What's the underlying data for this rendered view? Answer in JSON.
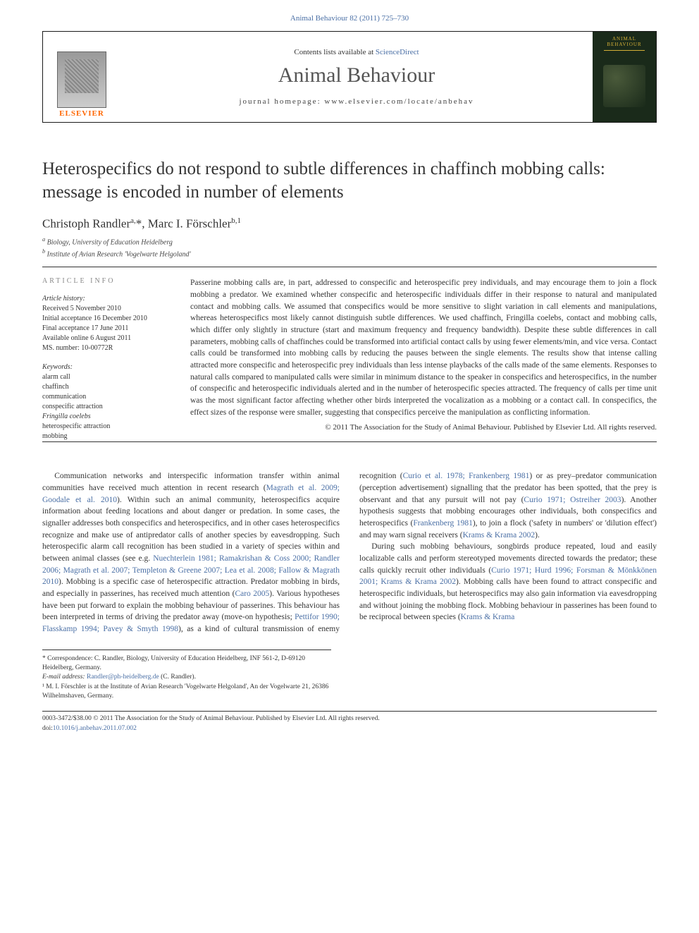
{
  "header": {
    "citation": "Animal Behaviour 82 (2011) 725–730",
    "contents_text": "Contents lists available at ",
    "contents_link": "ScienceDirect",
    "journal_name": "Animal Behaviour",
    "homepage_label": "journal homepage: ",
    "homepage_url": "www.elsevier.com/locate/anbehav",
    "elsevier_label": "ELSEVIER",
    "cover_title": "ANIMAL BEHAVIOUR"
  },
  "article": {
    "title": "Heterospecifics do not respond to subtle differences in chaffinch mobbing calls: message is encoded in number of elements",
    "authors_html": "Christoph Randler <sup>a,</sup>*, Marc I. Förschler <sup>b,1</sup>",
    "affiliations": {
      "a": "Biology, University of Education Heidelberg",
      "b": "Institute of Avian Research 'Vogelwarte Helgoland'"
    }
  },
  "info": {
    "header": "ARTICLE INFO",
    "history_label": "Article history:",
    "history": [
      "Received 5 November 2010",
      "Initial acceptance 16 December 2010",
      "Final acceptance 17 June 2011",
      "Available online 6 August 2011",
      "MS. number: 10-00772R"
    ],
    "keywords_label": "Keywords:",
    "keywords": [
      "alarm call",
      "chaffinch",
      "communication",
      "conspecific attraction",
      "Fringilla coelebs",
      "heterospecific attraction",
      "mobbing"
    ]
  },
  "abstract": {
    "text": "Passerine mobbing calls are, in part, addressed to conspecific and heterospecific prey individuals, and may encourage them to join a flock mobbing a predator. We examined whether conspecific and heterospecific individuals differ in their response to natural and manipulated contact and mobbing calls. We assumed that conspecifics would be more sensitive to slight variation in call elements and manipulations, whereas heterospecifics most likely cannot distinguish subtle differences. We used chaffinch, Fringilla coelebs, contact and mobbing calls, which differ only slightly in structure (start and maximum frequency and frequency bandwidth). Despite these subtle differences in call parameters, mobbing calls of chaffinches could be transformed into artificial contact calls by using fewer elements/min, and vice versa. Contact calls could be transformed into mobbing calls by reducing the pauses between the single elements. The results show that intense calling attracted more conspecific and heterospecific prey individuals than less intense playbacks of the calls made of the same elements. Responses to natural calls compared to manipulated calls were similar in minimum distance to the speaker in conspecifics and heterospecifics, in the number of conspecific and heterospecific individuals alerted and in the number of heterospecific species attracted. The frequency of calls per time unit was the most significant factor affecting whether other birds interpreted the vocalization as a mobbing or a contact call. In conspecifics, the effect sizes of the response were smaller, suggesting that conspecifics perceive the manipulation as conflicting information.",
    "copyright": "© 2011 The Association for the Study of Animal Behaviour. Published by Elsevier Ltd. All rights reserved."
  },
  "body": {
    "para1_a": "Communication networks and interspecific information transfer within animal communities have received much attention in recent research (",
    "para1_link1": "Magrath et al. 2009; Goodale et al. 2010",
    "para1_b": "). Within such an animal community, heterospecifics acquire information about feeding locations and about danger or predation. In some cases, the signaller addresses both conspecifics and heterospecifics, and in other cases heterospecifics recognize and make use of antipredator calls of another species by eavesdropping. Such heterospecific alarm call recognition has been studied in a variety of species within and between animal classes (see e.g. ",
    "para1_link2": "Nuechterlein 1981; Ramakrishan & Coss 2000; Randler 2006; Magrath et al. 2007; Templeton & Greene 2007; Lea et al. 2008; Fallow & Magrath 2010",
    "para1_c": "). Mobbing is a specific case of heterospecific attraction. Predator mobbing in birds, and especially in passerines, has received much attention (",
    "para1_link3": "Caro 2005",
    "para1_d": "). Various hypotheses have been put forward to explain the mobbing behaviour of passerines. This behaviour has been interpreted in terms of driving the predator away (move-on hypothesis; ",
    "para1_link4": "Pettifor 1990; Flasskamp 1994; Pavey & Smyth 1998",
    "para1_e": "), as a kind of cultural transmission of enemy recognition (",
    "para1_link5": "Curio et al. 1978; Frankenberg 1981",
    "para1_f": ") or as prey–predator communication (perception advertisement) signalling that the predator has been spotted, that the prey is observant and that any pursuit will not pay (",
    "para1_link6": "Curio 1971; Ostreiher 2003",
    "para1_g": "). Another hypothesis suggests that mobbing encourages other individuals, both conspecifics and heterospecifics (",
    "para1_link7": "Frankenberg 1981",
    "para1_h": "), to join a flock ('safety in numbers' or 'dilution effect') and may warn signal receivers (",
    "para1_link8": "Krams & Krama 2002",
    "para1_i": ").",
    "para2_a": "During such mobbing behaviours, songbirds produce repeated, loud and easily localizable calls and perform stereotyped movements directed towards the predator; these calls quickly recruit other individuals (",
    "para2_link1": "Curio 1971; Hurd 1996; Forsman & Mönkkönen 2001; Krams & Krama 2002",
    "para2_b": "). Mobbing calls have been found to attract conspecific and heterospecific individuals, but heterospecifics may also gain information via eavesdropping and without joining the mobbing flock. Mobbing behaviour in passerines has been found to be reciprocal between species (",
    "para2_link2": "Krams & Krama"
  },
  "footnotes": {
    "corr1": "* Correspondence: C. Randler, Biology, University of Education Heidelberg, INF 561-2, D-69120 Heidelberg, Germany.",
    "email_label": "E-mail address: ",
    "email": "Randler@ph-heidelberg.de",
    "email_tail": " (C. Randler).",
    "fn1": "¹ M. I. Förschler is at the Institute of Avian Research 'Vogelwarte Helgoland', An der Vogelwarte 21, 26386 Wilhelmshaven, Germany."
  },
  "footer": {
    "line1": "0003-3472/$38.00 © 2011 The Association for the Study of Animal Behaviour. Published by Elsevier Ltd. All rights reserved.",
    "doi_label": "doi:",
    "doi": "10.1016/j.anbehav.2011.07.002"
  }
}
